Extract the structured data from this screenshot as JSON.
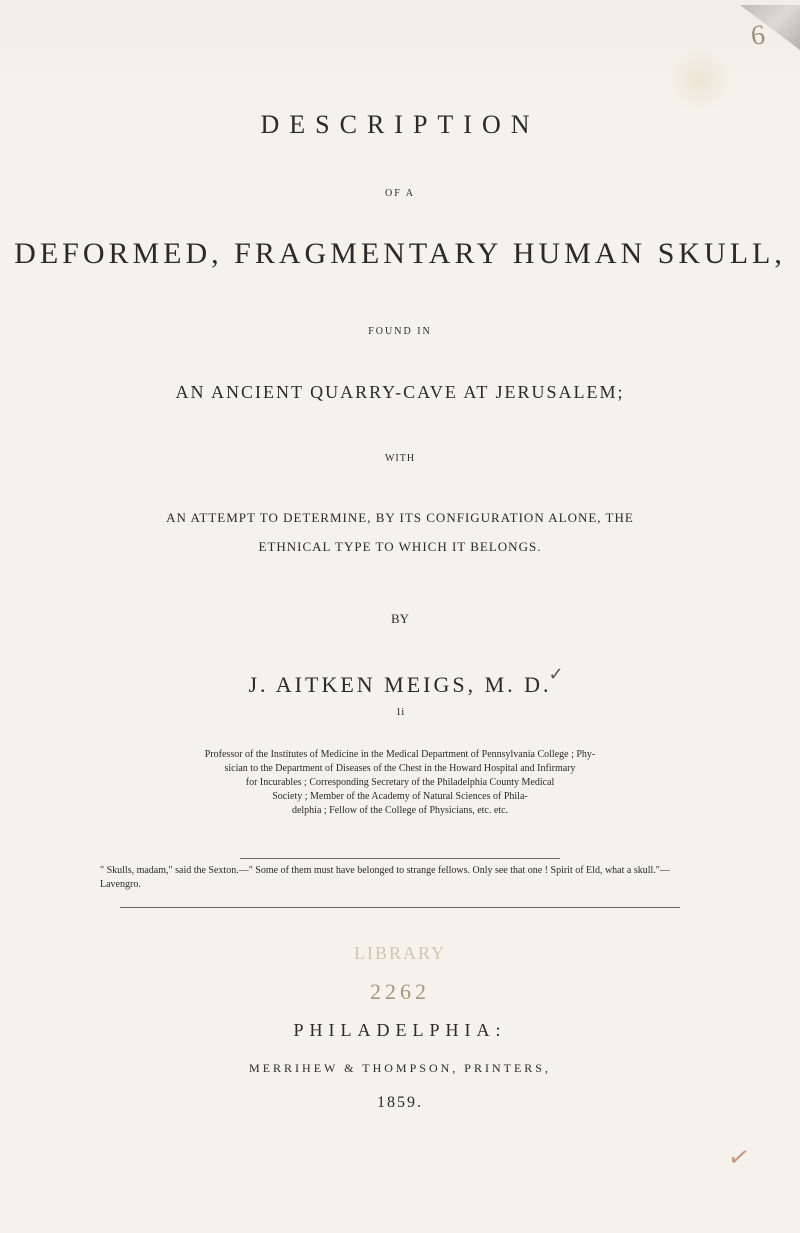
{
  "annotations": {
    "top_right_mark": "6",
    "bottom_right_check": "✓"
  },
  "title": {
    "main": "DESCRIPTION",
    "of_a": "OF A",
    "deformed": "DEFORMED, FRAGMENTARY HUMAN SKULL,",
    "found_in": "FOUND IN",
    "quarry": "AN ANCIENT QUARRY-CAVE AT JERUSALEM;",
    "with": "WITH",
    "attempt_line1": "AN ATTEMPT TO DETERMINE, BY ITS CONFIGURATION ALONE, THE",
    "attempt_line2": "ETHNICAL TYPE TO WHICH IT BELONGS."
  },
  "author": {
    "by": "BY",
    "name": "J. AITKEN MEIGS, M. D.",
    "checkmark": "✓",
    "small_mark": "1i"
  },
  "credentials": {
    "line1": "Professor of the Institutes of Medicine in the Medical Department of Pennsylvania College ; Phy-",
    "line2": "sician to the Department of Diseases of the Chest in the Howard Hospital and Infirmary",
    "line3": "for Incurables ; Corresponding Secretary of the Philadelphia County Medical",
    "line4": "Society ; Member of the Academy of Natural Sciences of Phila-",
    "line5": "delphia ; Fellow of the College of Physicians, etc. etc."
  },
  "quote": {
    "text": "\" Skulls, madam,\" said the Sexton.—\" Some of them must have belonged to strange fellows. Only see that one ! Spirit of Eld, what a skull.\"—Lavengro."
  },
  "stamp": {
    "library": "LIBRARY",
    "handwritten": "2262"
  },
  "imprint": {
    "city": "PHILADELPHIA:",
    "printers": "MERRIHEW & THOMPSON, PRINTERS,",
    "year": "1859."
  },
  "colors": {
    "page_bg": "#f5f2eb",
    "text": "#2a2a2a",
    "faded_stamp": "#b8a888",
    "handwritten": "#8a7858",
    "red_check": "#c07050"
  },
  "typography": {
    "serif_family": "Georgia, Times New Roman, serif",
    "title_spacing": 10,
    "body_size": 10
  }
}
